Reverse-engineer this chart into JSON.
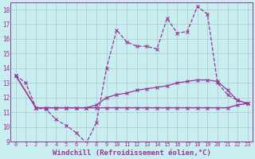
{
  "background_color": "#c8eef0",
  "grid_color": "#aabbcc",
  "line_color": "#993399",
  "xlim": [
    -0.5,
    23.5
  ],
  "ylim": [
    9,
    18.5
  ],
  "yticks": [
    9,
    10,
    11,
    12,
    13,
    14,
    15,
    16,
    17,
    18
  ],
  "xticks": [
    0,
    1,
    2,
    3,
    4,
    5,
    6,
    7,
    8,
    9,
    10,
    11,
    12,
    13,
    14,
    15,
    16,
    17,
    18,
    19,
    20,
    21,
    22,
    23
  ],
  "xlabel": "Windchill (Refroidissement éolien,°C)",
  "xlabel_fontsize": 6.5,
  "xtick_fontsize": 5.0,
  "ytick_fontsize": 5.5,
  "series": [
    {
      "x": [
        0,
        1,
        2,
        3,
        4,
        5,
        6,
        7,
        8,
        9,
        10,
        11,
        12,
        13,
        14,
        15,
        16,
        17,
        18,
        19,
        20,
        21,
        22,
        23
      ],
      "y": [
        13.5,
        13.0,
        11.3,
        11.2,
        10.5,
        10.1,
        9.6,
        8.9,
        10.3,
        14.0,
        16.6,
        15.8,
        15.5,
        15.5,
        15.3,
        17.4,
        16.4,
        16.5,
        18.2,
        17.7,
        13.0,
        12.2,
        11.8,
        11.6
      ],
      "linewidth": 0.9,
      "linestyle": "--",
      "marker": "x",
      "markersize": 3
    },
    {
      "x": [
        0,
        2,
        3,
        4,
        5,
        6,
        7,
        8,
        9,
        10,
        11,
        12,
        13,
        14,
        15,
        16,
        17,
        18,
        19,
        20,
        21,
        22,
        23
      ],
      "y": [
        13.5,
        11.3,
        11.3,
        11.3,
        11.3,
        11.3,
        11.3,
        11.5,
        12.0,
        12.2,
        12.3,
        12.5,
        12.6,
        12.7,
        12.8,
        13.0,
        13.1,
        13.2,
        13.2,
        13.1,
        12.5,
        11.8,
        11.6
      ],
      "linewidth": 0.9,
      "linestyle": "-",
      "marker": "x",
      "markersize": 3
    },
    {
      "x": [
        0,
        2,
        3,
        4,
        5,
        6,
        7,
        8,
        9,
        10,
        11,
        12,
        13,
        14,
        15,
        16,
        17,
        18,
        19,
        20,
        21,
        22,
        23
      ],
      "y": [
        13.5,
        11.3,
        11.3,
        11.3,
        11.3,
        11.3,
        11.3,
        11.3,
        11.3,
        11.3,
        11.3,
        11.3,
        11.3,
        11.3,
        11.3,
        11.3,
        11.3,
        11.3,
        11.3,
        11.3,
        11.3,
        11.5,
        11.6
      ],
      "linewidth": 1.0,
      "linestyle": "-",
      "marker": "x",
      "markersize": 3
    }
  ]
}
